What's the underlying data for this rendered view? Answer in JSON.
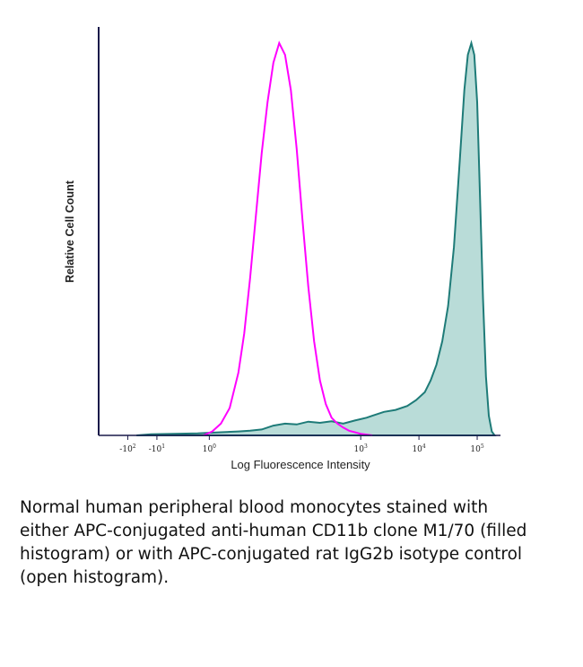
{
  "colors": {
    "filled": "#1e7b78",
    "filled_fill": "#b9dcd8",
    "open": "#ff00ff",
    "axis": "#1a1a4a"
  },
  "chart_data": {
    "type": "area",
    "title": "",
    "xlabel": "Log Fluorescence Intensity",
    "ylabel": "Relative Cell Count",
    "xscale": "biexponential",
    "xlim": [
      -1.5,
      5.4
    ],
    "ylim": [
      0,
      1.0
    ],
    "xticks": [
      {
        "value": -1.0,
        "base": "-10",
        "exp": "2"
      },
      {
        "value": -0.5,
        "base": "-10",
        "exp": "1"
      },
      {
        "value": 0.4,
        "base": "10",
        "exp": "0"
      },
      {
        "value": 3.0,
        "base": "10",
        "exp": "3"
      },
      {
        "value": 4.0,
        "base": "10",
        "exp": "4"
      },
      {
        "value": 5.0,
        "base": "10",
        "exp": "5"
      }
    ],
    "series": [
      {
        "name": "APC anti-human CD11b clone M1/70 (filled histogram)",
        "style": "filled",
        "x": [
          -0.85,
          -0.6,
          -0.2,
          0.2,
          0.6,
          0.9,
          1.1,
          1.3,
          1.5,
          1.7,
          1.9,
          2.1,
          2.3,
          2.5,
          2.7,
          2.9,
          3.1,
          3.2,
          3.4,
          3.6,
          3.8,
          3.95,
          4.1,
          4.2,
          4.3,
          4.4,
          4.5,
          4.6,
          4.7,
          4.78,
          4.84,
          4.9,
          4.95,
          5.0,
          5.05,
          5.1,
          5.15,
          5.2,
          5.25,
          5.3
        ],
        "y": [
          0,
          0.003,
          0.004,
          0.005,
          0.008,
          0.01,
          0.012,
          0.015,
          0.025,
          0.03,
          0.028,
          0.035,
          0.032,
          0.036,
          0.03,
          0.038,
          0.045,
          0.05,
          0.06,
          0.065,
          0.075,
          0.09,
          0.11,
          0.14,
          0.18,
          0.24,
          0.33,
          0.48,
          0.7,
          0.88,
          0.97,
          1.0,
          0.97,
          0.85,
          0.6,
          0.35,
          0.15,
          0.05,
          0.01,
          0
        ]
      },
      {
        "name": "APC rat IgG2b isotype control (open histogram)",
        "style": "open",
        "x": [
          0.3,
          0.45,
          0.6,
          0.75,
          0.9,
          1.0,
          1.1,
          1.2,
          1.3,
          1.4,
          1.5,
          1.6,
          1.7,
          1.8,
          1.9,
          2.0,
          2.1,
          2.2,
          2.3,
          2.4,
          2.5,
          2.6,
          2.7,
          2.8,
          2.9,
          3.0,
          3.1,
          3.2
        ],
        "y": [
          0,
          0.01,
          0.03,
          0.07,
          0.16,
          0.26,
          0.4,
          0.56,
          0.72,
          0.85,
          0.95,
          1.0,
          0.97,
          0.88,
          0.73,
          0.55,
          0.38,
          0.24,
          0.14,
          0.08,
          0.045,
          0.03,
          0.02,
          0.012,
          0.008,
          0.004,
          0.002,
          0
        ]
      }
    ]
  },
  "caption": {
    "lines": [
      "Normal human peripheral blood monocytes stained with",
      "either APC-conjugated anti-human CD11b clone M1/70 (filled",
      "histogram) or with APC-conjugated rat IgG2b isotype control",
      "(open histogram)."
    ]
  }
}
